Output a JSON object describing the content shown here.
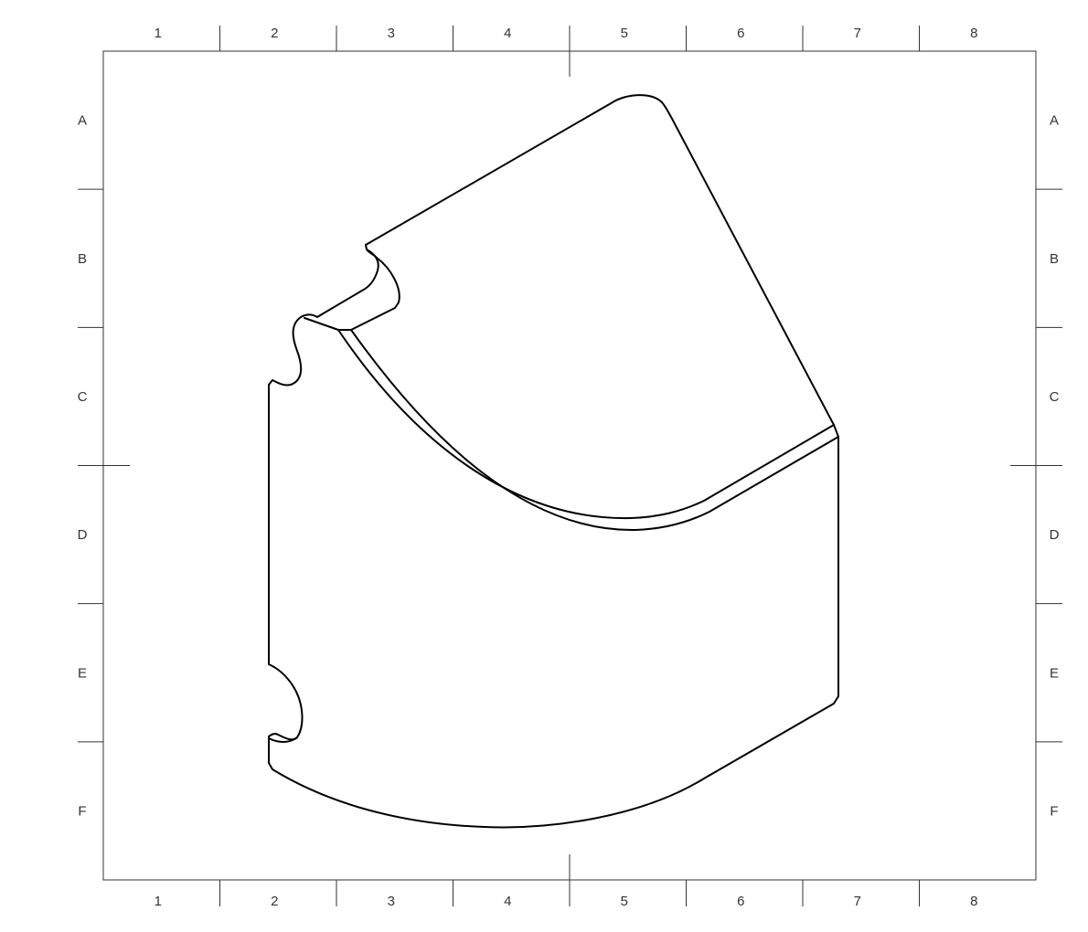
{
  "sheet": {
    "columns": [
      "1",
      "2",
      "3",
      "4",
      "5",
      "6",
      "7",
      "8"
    ],
    "rows": [
      "A",
      "B",
      "C",
      "D",
      "E",
      "F"
    ],
    "line_color": "#000000",
    "background": "#ffffff"
  },
  "drawing": {
    "view": "isometric",
    "part": "curved bracket block with notches"
  }
}
